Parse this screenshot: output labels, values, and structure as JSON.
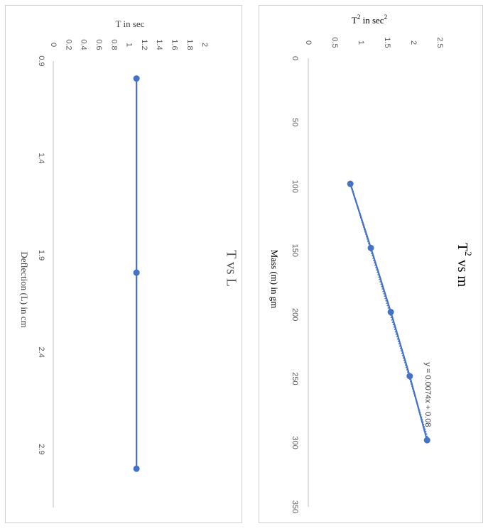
{
  "chart_data": [
    {
      "id": "t-vs-l",
      "type": "line",
      "title": "T vs L",
      "xlabel": "Deflection (L) in cm",
      "ylabel": "T in sec",
      "xlim": [
        0.9,
        3.2
      ],
      "ylim": [
        0,
        2
      ],
      "x_ticks": [
        "0.9",
        "1.4",
        "1.9",
        "2.4",
        "2.9"
      ],
      "y_ticks": [
        "0",
        "0.2",
        "0.4",
        "0.6",
        "0.8",
        "1",
        "1.2",
        "1.4",
        "1.6",
        "1.8",
        "2"
      ],
      "series": [
        {
          "x": [
            0.99,
            1.99,
            3.0
          ],
          "y": [
            1.1,
            1.1,
            1.1
          ]
        }
      ],
      "color": "#4472C4"
    },
    {
      "id": "t2-vs-m",
      "type": "scatter",
      "title_main": "T",
      "title_sup": "2",
      "title_rest": " vs m",
      "xlabel": "Mass (m) in gm",
      "ylabel_main": "T",
      "ylabel_sup": "2",
      "ylabel_rest": " in sec",
      "ylabel_sup2": "2",
      "xlim": [
        0,
        350
      ],
      "ylim": [
        0,
        2.5
      ],
      "x_ticks": [
        "0",
        "50",
        "100",
        "150",
        "200",
        "250",
        "300",
        "350"
      ],
      "y_ticks": [
        "0",
        "0.5",
        "1",
        "1.5",
        "2",
        "2.5"
      ],
      "series": [
        {
          "x": [
            98,
            148,
            198,
            248,
            298
          ],
          "y": [
            0.8,
            1.19,
            1.57,
            1.93,
            2.26
          ]
        }
      ],
      "trendline": {
        "equation": "y = 0.0074x + 0.08",
        "slope": 0.0074,
        "intercept": 0.08,
        "style": "dotted"
      },
      "color": "#4472C4"
    }
  ]
}
